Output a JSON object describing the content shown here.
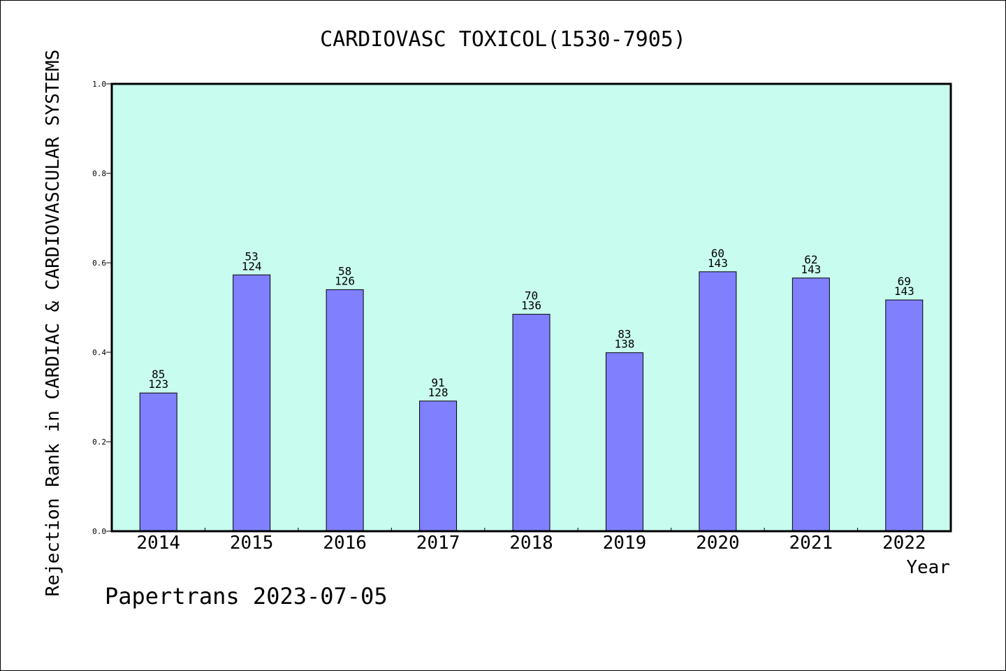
{
  "chart_data": {
    "type": "bar",
    "title": "CARDIOVASC TOXICOL(1530-7905)",
    "xlabel": "Year",
    "ylabel": "Rejection Rank in CARDIAC & CARDIOVASCULAR SYSTEMS",
    "categories": [
      "2014",
      "2015",
      "2016",
      "2017",
      "2018",
      "2019",
      "2020",
      "2021",
      "2022"
    ],
    "values": [
      0.309,
      0.573,
      0.54,
      0.291,
      0.485,
      0.399,
      0.58,
      0.566,
      0.517
    ],
    "labels_top": [
      "85",
      "53",
      "58",
      "91",
      "70",
      "83",
      "60",
      "62",
      "69"
    ],
    "labels_bottom": [
      "123",
      "124",
      "126",
      "128",
      "136",
      "138",
      "143",
      "143",
      "143"
    ],
    "ylim": [
      0,
      1.0
    ],
    "yticks": [
      0.0,
      0.2,
      0.4,
      0.6,
      0.8,
      1.0
    ],
    "ytick_labels": [
      "0.0",
      "0.2",
      "0.4",
      "0.6",
      "0.8",
      "1.0"
    ],
    "grid": false,
    "colors": {
      "plot_background": "#c8fcee",
      "bar": "#8080ff",
      "outline": "#000000"
    }
  },
  "footer": {
    "text": "Papertrans 2023-07-05"
  }
}
